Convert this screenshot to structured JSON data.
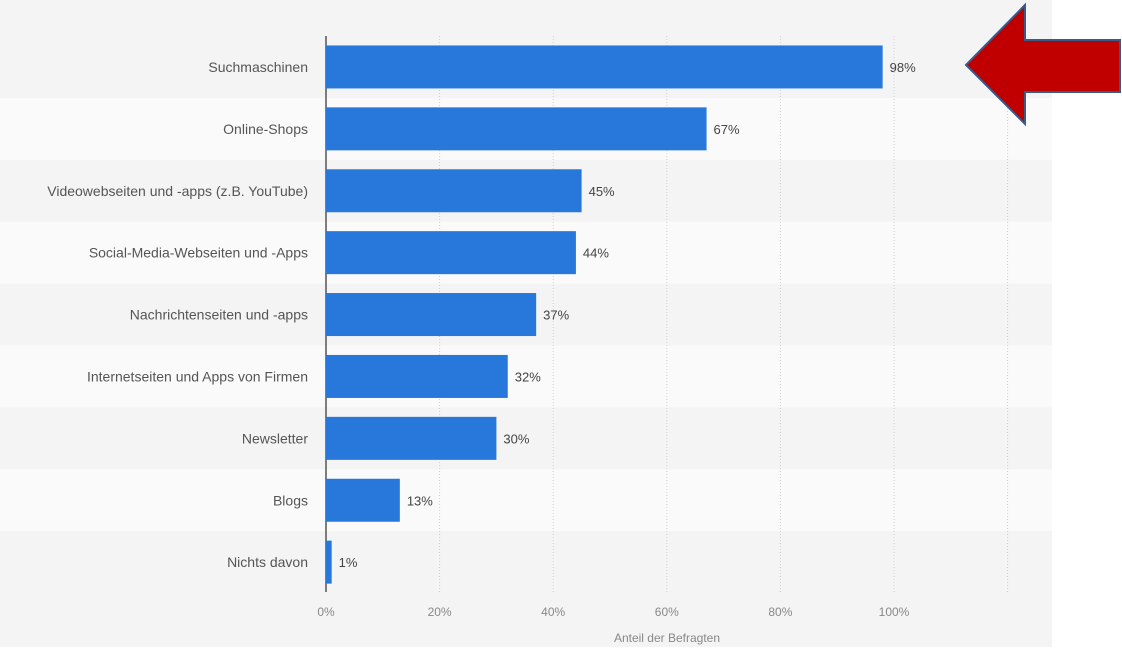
{
  "chart_data": {
    "type": "bar",
    "orientation": "horizontal",
    "categories": [
      "Suchmaschinen",
      "Online-Shops",
      "Videowebseiten und -apps (z.B. YouTube)",
      "Social-Media-Webseiten und -Apps",
      "Nachrichtenseiten und -apps",
      "Internetseiten und Apps von Firmen",
      "Newsletter",
      "Blogs",
      "Nichts davon"
    ],
    "values": [
      98,
      67,
      45,
      44,
      37,
      32,
      30,
      13,
      1
    ],
    "value_labels": [
      "98%",
      "67%",
      "45%",
      "44%",
      "37%",
      "32%",
      "30%",
      "13%",
      "1%"
    ],
    "xlabel": "Anteil der Befragten",
    "ylabel": "",
    "xlim": [
      0,
      120
    ],
    "x_ticks": [
      0,
      20,
      40,
      60,
      80,
      100
    ],
    "x_tick_labels": [
      "0%",
      "20%",
      "40%",
      "60%",
      "80%",
      "100%"
    ],
    "grid": true,
    "bar_color": "#2878dc",
    "annotation": {
      "type": "arrow",
      "direction": "left",
      "points_to": "Suchmaschinen",
      "fill": "#c00000",
      "stroke": "#3a5a8a"
    }
  },
  "colors": {
    "plot_background": "#f4f4f4",
    "band_alternate": "#fafafa",
    "label_text": "#555555",
    "tick_text": "#888888"
  }
}
